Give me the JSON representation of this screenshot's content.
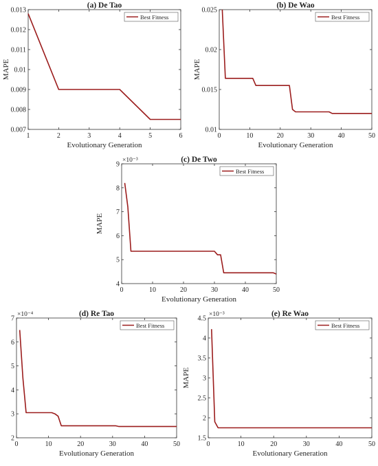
{
  "colors": {
    "line": "#9b1c1c",
    "axis": "#333333"
  },
  "chart_data": [
    {
      "type": "line",
      "title": "(a) De Tao",
      "xlabel": "Evolutionary Generation",
      "ylabel": "MAPE",
      "exponent_label": "",
      "xlim": [
        1,
        6
      ],
      "ylim": [
        0.007,
        0.013
      ],
      "xticks": [
        1,
        2,
        3,
        4,
        5,
        6
      ],
      "xtick_labels": [
        "1",
        "2",
        "3",
        "4",
        "5",
        "6"
      ],
      "yticks": [
        0.007,
        0.008,
        0.009,
        0.01,
        0.011,
        0.012,
        0.013
      ],
      "ytick_labels": [
        "0.007",
        "0.008",
        "0.009",
        "0.01",
        "0.011",
        "0.012",
        "0.013"
      ],
      "grid": false,
      "legend_position": "top-right",
      "series": [
        {
          "name": "Best Fitness",
          "x": [
            1,
            2,
            3,
            4,
            5,
            6
          ],
          "y": [
            0.0128,
            0.009,
            0.009,
            0.009,
            0.0075,
            0.0075
          ]
        }
      ]
    },
    {
      "type": "line",
      "title": "(b) De Wao",
      "xlabel": "Evolutionary Generation",
      "ylabel": "MAPE",
      "exponent_label": "",
      "xlim": [
        0,
        50
      ],
      "ylim": [
        0.01,
        0.025
      ],
      "xticks": [
        0,
        10,
        20,
        30,
        40,
        50
      ],
      "xtick_labels": [
        "0",
        "10",
        "20",
        "30",
        "40",
        "50"
      ],
      "yticks": [
        0.01,
        0.015,
        0.02,
        0.025
      ],
      "ytick_labels": [
        "0.01",
        "0.015",
        "0.02",
        "0.025"
      ],
      "grid": false,
      "legend_position": "top-right",
      "series": [
        {
          "name": "Best Fitness",
          "x": [
            1,
            2,
            11,
            12,
            23,
            24,
            25,
            36,
            37,
            50
          ],
          "y": [
            0.025,
            0.0164,
            0.0164,
            0.0155,
            0.0155,
            0.0125,
            0.0122,
            0.0122,
            0.012,
            0.012
          ]
        }
      ]
    },
    {
      "type": "line",
      "title": "(c) De Two",
      "xlabel": "Evolutionary Generation",
      "ylabel": "MAPE",
      "exponent_label": "×10⁻³",
      "xlim": [
        0,
        50
      ],
      "ylim": [
        4,
        9
      ],
      "xticks": [
        0,
        10,
        20,
        30,
        40,
        50
      ],
      "xtick_labels": [
        "0",
        "10",
        "20",
        "30",
        "40",
        "50"
      ],
      "yticks": [
        4,
        5,
        6,
        7,
        8,
        9
      ],
      "ytick_labels": [
        "4",
        "5",
        "6",
        "7",
        "8",
        "9"
      ],
      "grid": false,
      "legend_position": "top-right",
      "series": [
        {
          "name": "Best Fitness",
          "x": [
            1,
            2,
            3,
            30,
            31,
            32,
            33,
            49,
            50
          ],
          "y": [
            8.2,
            7.2,
            5.35,
            5.35,
            5.2,
            5.2,
            4.45,
            4.45,
            4.4
          ]
        }
      ]
    },
    {
      "type": "line",
      "title": "(d) Re Tao",
      "xlabel": "Evolutionary Generation",
      "ylabel": "MAPE",
      "exponent_label": "×10⁻⁴",
      "xlim": [
        0,
        50
      ],
      "ylim": [
        2,
        7
      ],
      "xticks": [
        0,
        10,
        20,
        30,
        40,
        50
      ],
      "xtick_labels": [
        "0",
        "10",
        "20",
        "30",
        "40",
        "50"
      ],
      "yticks": [
        2,
        3,
        4,
        5,
        6,
        7
      ],
      "ytick_labels": [
        "2",
        "3",
        "4",
        "5",
        "6",
        "7"
      ],
      "grid": false,
      "legend_position": "top-right",
      "series": [
        {
          "name": "Best Fitness",
          "x": [
            1,
            2,
            3,
            5,
            11,
            12,
            13,
            14,
            31,
            32,
            50
          ],
          "y": [
            6.5,
            4.5,
            3.05,
            3.05,
            3.05,
            3.0,
            2.9,
            2.5,
            2.5,
            2.47,
            2.47
          ]
        }
      ]
    },
    {
      "type": "line",
      "title": "(e) Re Wao",
      "xlabel": "Evolutionary Generation",
      "ylabel": "MAPE",
      "exponent_label": "×10⁻³",
      "xlim": [
        0,
        50
      ],
      "ylim": [
        1.5,
        4.5
      ],
      "xticks": [
        0,
        10,
        20,
        30,
        40,
        50
      ],
      "xtick_labels": [
        "0",
        "10",
        "20",
        "30",
        "40",
        "50"
      ],
      "yticks": [
        1.5,
        2,
        2.5,
        3,
        3.5,
        4,
        4.5
      ],
      "ytick_labels": [
        "1.5",
        "2",
        "2.5",
        "3",
        "3.5",
        "4",
        "4.5"
      ],
      "grid": false,
      "legend_position": "top-right",
      "series": [
        {
          "name": "Best Fitness",
          "x": [
            1,
            2,
            3,
            50
          ],
          "y": [
            4.22,
            1.9,
            1.75,
            1.75
          ]
        }
      ]
    }
  ]
}
